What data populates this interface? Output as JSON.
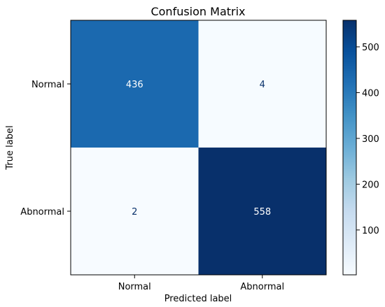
{
  "chart_data": {
    "type": "heatmap",
    "title": "Confusion Matrix",
    "xlabel": "Predicted label",
    "ylabel": "True label",
    "x_categories": [
      "Normal",
      "Abnormal"
    ],
    "y_categories": [
      "Normal",
      "Abnormal"
    ],
    "values": [
      [
        436,
        4
      ],
      [
        2,
        558
      ]
    ],
    "value_labels": [
      [
        "436",
        "4"
      ],
      [
        "2",
        "558"
      ]
    ],
    "colormap": "Blues",
    "color_range": [
      2,
      558
    ],
    "colorbar_ticks": [
      100,
      200,
      300,
      400,
      500
    ],
    "colorbar_tick_labels": [
      "100",
      "200",
      "300",
      "400",
      "500"
    ],
    "grid": false,
    "legend": "colorbar-right"
  }
}
